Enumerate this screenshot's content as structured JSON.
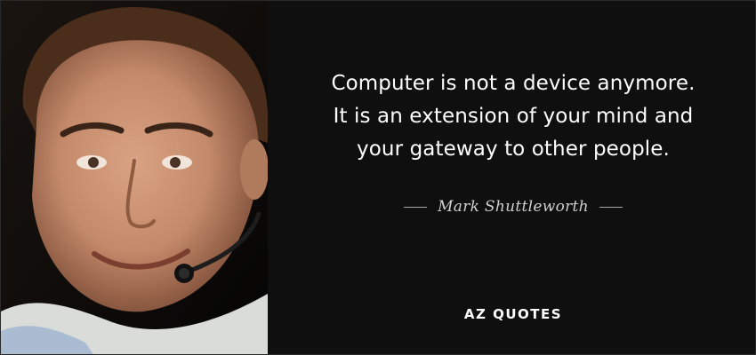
{
  "quote": {
    "lines": [
      "Computer is not a device anymore.",
      "It is an extension of your mind and",
      "your gateway to other people."
    ]
  },
  "author": {
    "name": "Mark Shuttleworth"
  },
  "brand": {
    "logo_text": "AZ QUOTES"
  },
  "colors": {
    "background": "#0f0f0f",
    "text": "#ffffff",
    "author_text": "#cfcfcf"
  }
}
